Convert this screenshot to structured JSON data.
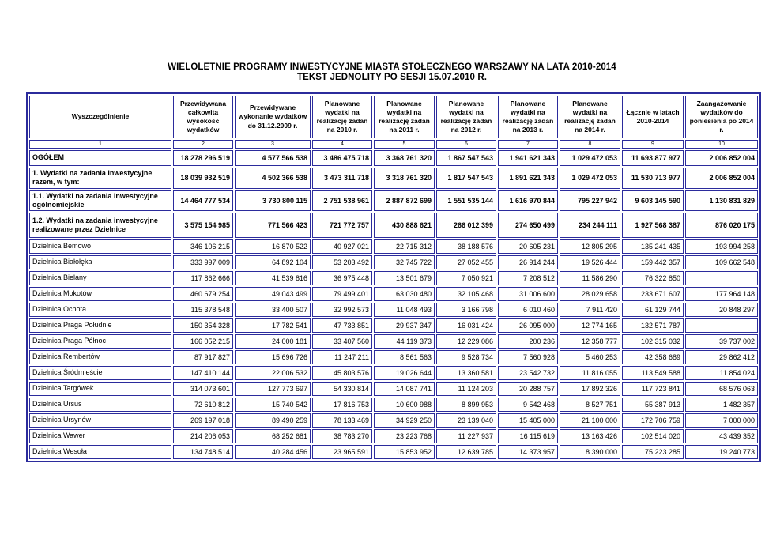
{
  "title": {
    "line1": "WIELOLETNIE PROGRAMY INWESTYCYJNE MIASTA STOŁECZNEGO WARSZAWY NA LATA 2010-2014",
    "line2": "TEKST JEDNOLITY PO SESJI 15.07.2010 R."
  },
  "colors": {
    "table_border": "#2b2b9c",
    "text": "#000000",
    "page_background": "#ffffff"
  },
  "table": {
    "headers": [
      "Wyszczególnienie",
      "Przewidywana całkowita wysokość wydatków",
      "Przewidywane wykonanie wydatków do 31.12.2009 r.",
      "Planowane wydatki na realizację zadań na 2010 r.",
      "Planowane wydatki na realizację zadań na 2011 r.",
      "Planowane wydatki na realizację zadań na 2012 r.",
      "Planowane wydatki na realizację zadań na 2013 r.",
      "Planowane wydatki na realizację zadań na 2014 r.",
      "Łącznie w latach 2010-2014",
      "Zaangażowanie wydatków do poniesienia po 2014 r."
    ],
    "col_numbers": [
      "1",
      "2",
      "3",
      "4",
      "5",
      "6",
      "7",
      "8",
      "9",
      "10"
    ],
    "rows": [
      {
        "label": "OGÓŁEM",
        "section": "summary",
        "values": [
          "18 278 296 519",
          "4 577 566 538",
          "3 486 475 718",
          "3 368 761 320",
          "1 867 547 543",
          "1 941 621 343",
          "1 029 472 053",
          "11 693 877 977",
          "2 006 852 004"
        ]
      },
      {
        "label": "1. Wydatki na zadania inwestycyjne razem, w tym:",
        "section": "summary",
        "values": [
          "18 039 932 519",
          "4 502 366 538",
          "3 473 311 718",
          "3 318 761 320",
          "1 817 547 543",
          "1 891 621 343",
          "1 029 472 053",
          "11 530 713 977",
          "2 006 852 004"
        ]
      },
      {
        "label": "1.1. Wydatki na zadania inwestycyjne ogólnomiejskie",
        "section": "summary",
        "values": [
          "14 464 777 534",
          "3 730 800 115",
          "2 751 538 961",
          "2 887 872 699",
          "1 551 535 144",
          "1 616 970 844",
          "795 227 942",
          "9 603 145 590",
          "1 130 831 829"
        ]
      },
      {
        "label": "1.2. Wydatki na zadania inwestycyjne realizowane przez Dzielnice",
        "section": "summary",
        "values": [
          "3 575 154 985",
          "771 566 423",
          "721 772 757",
          "430 888 621",
          "266 012 399",
          "274 650 499",
          "234 244 111",
          "1 927 568 387",
          "876 020 175"
        ]
      },
      {
        "label": "Dzielnica Bemowo",
        "section": "district",
        "values": [
          "346 106 215",
          "16 870 522",
          "40 927 021",
          "22 715 312",
          "38 188 576",
          "20 605 231",
          "12 805 295",
          "135 241 435",
          "193 994 258"
        ]
      },
      {
        "label": "Dzielnica Białołęka",
        "section": "district",
        "values": [
          "333 997 009",
          "64 892 104",
          "53 203 492",
          "32 745 722",
          "27 052 455",
          "26 914 244",
          "19 526 444",
          "159 442 357",
          "109 662 548"
        ]
      },
      {
        "label": "Dzielnica Bielany",
        "section": "district",
        "values": [
          "117 862 666",
          "41 539 816",
          "36 975 448",
          "13 501 679",
          "7 050 921",
          "7 208 512",
          "11 586 290",
          "76 322 850",
          ""
        ]
      },
      {
        "label": "Dzielnica Mokotów",
        "section": "district",
        "values": [
          "460 679 254",
          "49 043 499",
          "79 499 401",
          "63 030 480",
          "32 105 468",
          "31 006 600",
          "28 029 658",
          "233 671 607",
          "177 964 148"
        ]
      },
      {
        "label": "Dzielnica Ochota",
        "section": "district",
        "values": [
          "115 378 548",
          "33 400 507",
          "32 992 573",
          "11 048 493",
          "3 166 798",
          "6 010 460",
          "7 911 420",
          "61 129 744",
          "20 848 297"
        ]
      },
      {
        "label": "Dzielnica Praga Południe",
        "section": "district",
        "values": [
          "150 354 328",
          "17 782 541",
          "47 733 851",
          "29 937 347",
          "16 031 424",
          "26 095 000",
          "12 774 165",
          "132 571 787",
          ""
        ]
      },
      {
        "label": "Dzielnica Praga Północ",
        "section": "district",
        "values": [
          "166 052 215",
          "24 000 181",
          "33 407 560",
          "44 119 373",
          "12 229 086",
          "200 236",
          "12 358 777",
          "102 315 032",
          "39 737 002"
        ]
      },
      {
        "label": "Dzielnica Rembertów",
        "section": "district",
        "values": [
          "87 917 827",
          "15 696 726",
          "11 247 211",
          "8 561 563",
          "9 528 734",
          "7 560 928",
          "5 460 253",
          "42 358 689",
          "29 862 412"
        ]
      },
      {
        "label": "Dzielnica Śródmieście",
        "section": "district",
        "values": [
          "147 410 144",
          "22 006 532",
          "45 803 576",
          "19 026 644",
          "13 360 581",
          "23 542 732",
          "11 816 055",
          "113 549 588",
          "11 854 024"
        ]
      },
      {
        "label": "Dzielnica Targówek",
        "section": "district",
        "values": [
          "314 073 601",
          "127 773 697",
          "54 330 814",
          "14 087 741",
          "11 124 203",
          "20 288 757",
          "17 892 326",
          "117 723 841",
          "68 576 063"
        ]
      },
      {
        "label": "Dzielnica Ursus",
        "section": "district",
        "values": [
          "72 610 812",
          "15 740 542",
          "17 816 753",
          "10 600 988",
          "8 899 953",
          "9 542 468",
          "8 527 751",
          "55 387 913",
          "1 482 357"
        ]
      },
      {
        "label": "Dzielnica Ursynów",
        "section": "district",
        "values": [
          "269 197 018",
          "89 490 259",
          "78 133 469",
          "34 929 250",
          "23 139 040",
          "15 405 000",
          "21 100 000",
          "172 706 759",
          "7 000 000"
        ]
      },
      {
        "label": "Dzielnica Wawer",
        "section": "district",
        "values": [
          "214 206 053",
          "68 252 681",
          "38 783 270",
          "23 223 768",
          "11 227 937",
          "16 115 619",
          "13 163 426",
          "102 514 020",
          "43 439 352"
        ]
      },
      {
        "label": "Dzielnica Wesoła",
        "section": "district",
        "values": [
          "134 748 514",
          "40 284 456",
          "23 965 591",
          "15 853 952",
          "12 639 785",
          "14 373 957",
          "8 390 000",
          "75 223 285",
          "19 240 773"
        ]
      }
    ]
  }
}
